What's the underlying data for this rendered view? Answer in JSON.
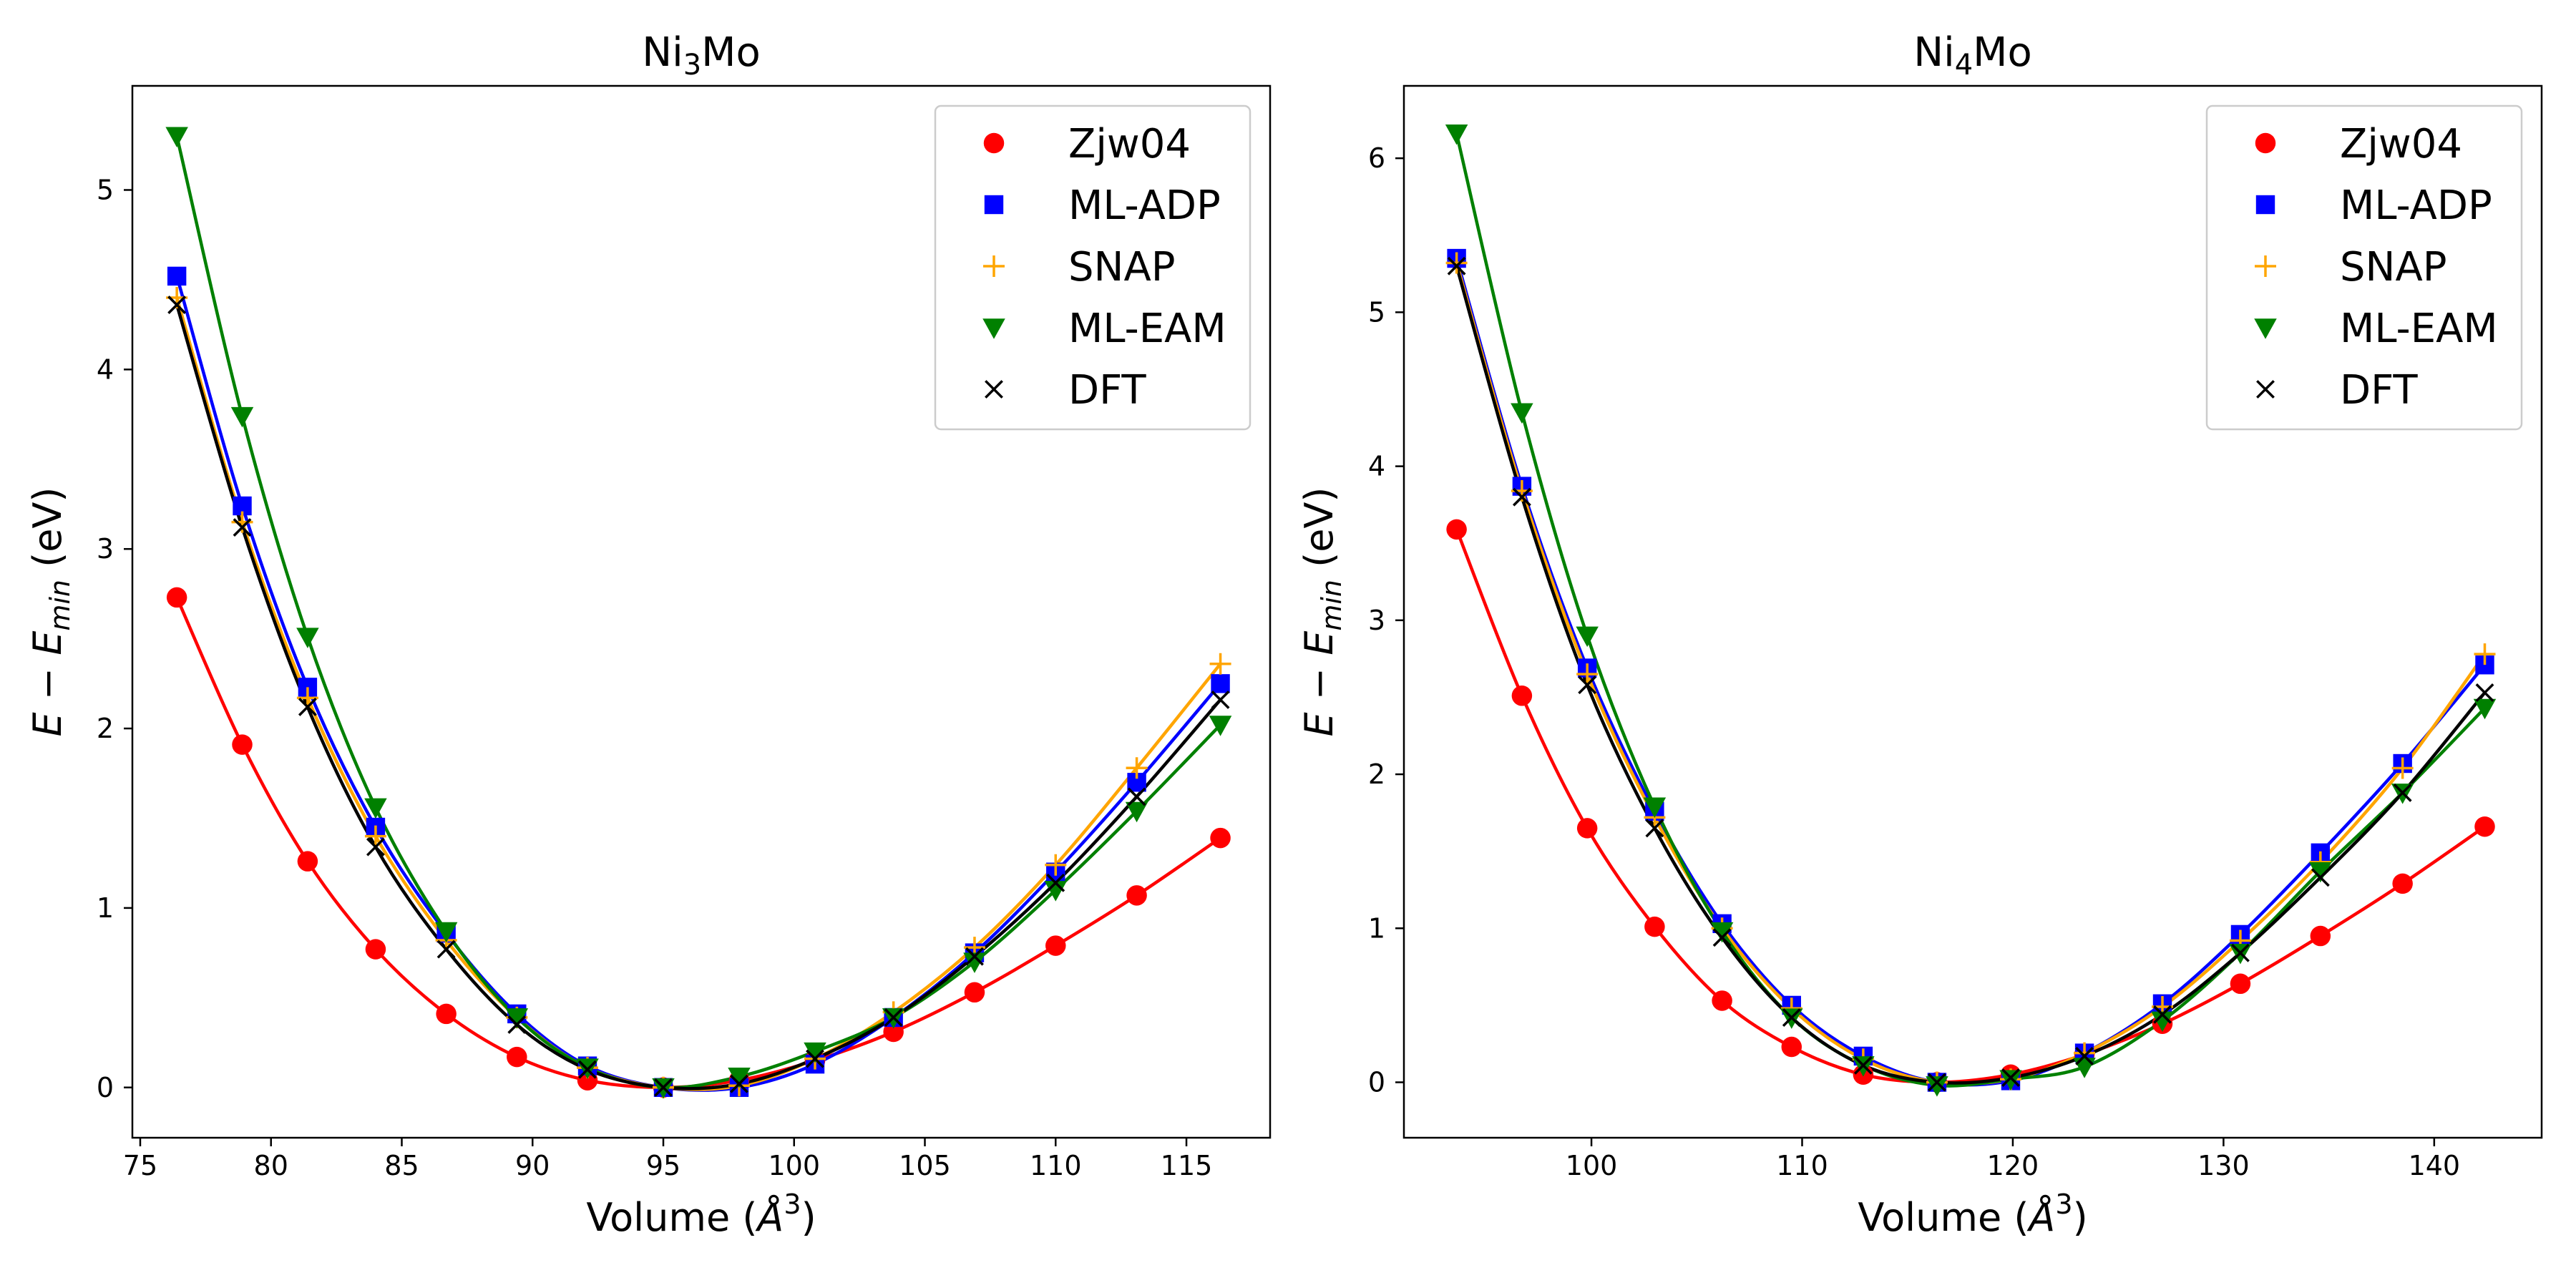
{
  "chart_data": [
    {
      "type": "scatter",
      "title": {
        "base": "Ni",
        "sub": "3",
        "rest": "Mo"
      },
      "xlabel": {
        "pre": "Volume (",
        "var": "Å",
        "sup": "3",
        "post": ")"
      },
      "ylabel": {
        "var_e": "E",
        "minus": " − ",
        "var_e2": "E",
        "sub": "min",
        "post": " (eV)"
      },
      "xlim": [
        74.7,
        118.2
      ],
      "ylim": [
        -0.28,
        5.58
      ],
      "xticks": [
        75,
        80,
        85,
        90,
        95,
        100,
        105,
        110,
        115
      ],
      "yticks": [
        0,
        1,
        2,
        3,
        4,
        5
      ],
      "legend_position": "top-right",
      "series": [
        {
          "name": "Zjw04",
          "color": "#ff0000",
          "marker": "circle",
          "x": [
            76.4,
            78.9,
            81.4,
            84.0,
            86.7,
            89.4,
            92.1,
            95.0,
            97.9,
            100.8,
            103.8,
            106.9,
            110.0,
            113.1,
            116.3
          ],
          "y": [
            2.73,
            1.91,
            1.26,
            0.77,
            0.41,
            0.17,
            0.04,
            0.0,
            0.04,
            0.15,
            0.31,
            0.53,
            0.79,
            1.07,
            1.39
          ]
        },
        {
          "name": "ML-ADP",
          "color": "#0000ff",
          "marker": "square",
          "x": [
            76.4,
            78.9,
            81.4,
            84.0,
            86.7,
            89.4,
            92.1,
            95.0,
            97.9,
            100.8,
            103.8,
            106.9,
            110.0,
            113.1,
            116.3
          ],
          "y": [
            4.52,
            3.24,
            2.23,
            1.45,
            0.86,
            0.41,
            0.12,
            0.0,
            0.0,
            0.13,
            0.39,
            0.75,
            1.2,
            1.7,
            2.25
          ]
        },
        {
          "name": "SNAP",
          "color": "#ffa500",
          "marker": "plus",
          "x": [
            76.4,
            78.9,
            81.4,
            84.0,
            86.7,
            89.4,
            92.1,
            95.0,
            97.9,
            100.8,
            103.8,
            106.9,
            110.0,
            113.1,
            116.3
          ],
          "y": [
            4.4,
            3.15,
            2.17,
            1.4,
            0.82,
            0.39,
            0.11,
            0.0,
            0.01,
            0.16,
            0.42,
            0.78,
            1.24,
            1.78,
            2.36
          ]
        },
        {
          "name": "ML-EAM",
          "color": "#008000",
          "marker": "triangle-down",
          "x": [
            76.4,
            78.9,
            81.4,
            84.0,
            86.7,
            89.4,
            92.1,
            95.0,
            97.9,
            100.8,
            103.8,
            106.9,
            110.0,
            113.1,
            116.3
          ],
          "y": [
            5.3,
            3.74,
            2.51,
            1.56,
            0.87,
            0.39,
            0.11,
            0.0,
            0.06,
            0.2,
            0.39,
            0.7,
            1.1,
            1.54,
            2.02
          ]
        },
        {
          "name": "DFT",
          "color": "#000000",
          "marker": "x",
          "x": [
            76.4,
            78.9,
            81.4,
            84.0,
            86.7,
            89.4,
            92.1,
            95.0,
            97.9,
            100.8,
            103.8,
            106.9,
            110.0,
            113.1,
            116.3
          ],
          "y": [
            4.36,
            3.12,
            2.12,
            1.34,
            0.77,
            0.35,
            0.1,
            0.0,
            0.02,
            0.16,
            0.39,
            0.73,
            1.14,
            1.62,
            2.16
          ]
        }
      ]
    },
    {
      "type": "scatter",
      "title": {
        "base": "Ni",
        "sub": "4",
        "rest": "Mo"
      },
      "xlabel": {
        "pre": "Volume (",
        "var": "Å",
        "sup": "3",
        "post": ")"
      },
      "ylabel": {
        "var_e": "E",
        "minus": " − ",
        "var_e2": "E",
        "sub": "min",
        "post": " (eV)"
      },
      "xlim": [
        91.1,
        145.1
      ],
      "ylim": [
        -0.36,
        6.47
      ],
      "xticks": [
        100,
        110,
        120,
        130,
        140
      ],
      "yticks": [
        0,
        1,
        2,
        3,
        4,
        5,
        6
      ],
      "legend_position": "top-right",
      "series": [
        {
          "name": "Zjw04",
          "color": "#ff0000",
          "marker": "circle",
          "x": [
            93.6,
            96.7,
            99.8,
            103.0,
            106.2,
            109.5,
            112.9,
            116.4,
            119.9,
            123.4,
            127.1,
            130.8,
            134.6,
            138.5,
            142.4
          ],
          "y": [
            3.59,
            2.51,
            1.65,
            1.01,
            0.53,
            0.23,
            0.05,
            0.0,
            0.05,
            0.18,
            0.38,
            0.64,
            0.95,
            1.29,
            1.66
          ]
        },
        {
          "name": "ML-ADP",
          "color": "#0000ff",
          "marker": "square",
          "x": [
            93.6,
            96.7,
            99.8,
            103.0,
            106.2,
            109.5,
            112.9,
            116.4,
            119.9,
            123.4,
            127.1,
            130.8,
            134.6,
            138.5,
            142.4
          ],
          "y": [
            5.35,
            3.87,
            2.69,
            1.76,
            1.03,
            0.5,
            0.17,
            0.0,
            0.01,
            0.19,
            0.51,
            0.96,
            1.49,
            2.07,
            2.71
          ]
        },
        {
          "name": "SNAP",
          "color": "#ffa500",
          "marker": "plus",
          "x": [
            93.6,
            96.7,
            99.8,
            103.0,
            106.2,
            109.5,
            112.9,
            116.4,
            119.9,
            123.4,
            127.1,
            130.8,
            134.6,
            138.5,
            142.4
          ],
          "y": [
            5.32,
            3.84,
            2.65,
            1.72,
            1.0,
            0.48,
            0.15,
            0.0,
            0.02,
            0.19,
            0.49,
            0.92,
            1.43,
            2.04,
            2.78
          ]
        },
        {
          "name": "ML-EAM",
          "color": "#008000",
          "marker": "triangle-down",
          "x": [
            93.6,
            96.7,
            99.8,
            103.0,
            106.2,
            109.5,
            112.9,
            116.4,
            119.9,
            123.4,
            127.1,
            130.8,
            134.6,
            138.5,
            142.4
          ],
          "y": [
            6.16,
            4.35,
            2.9,
            1.79,
            0.98,
            0.42,
            0.11,
            -0.02,
            0.02,
            0.1,
            0.4,
            0.84,
            1.37,
            1.88,
            2.43
          ]
        },
        {
          "name": "DFT",
          "color": "#000000",
          "marker": "x",
          "x": [
            93.6,
            96.7,
            99.8,
            103.0,
            106.2,
            109.5,
            112.9,
            116.4,
            119.9,
            123.4,
            127.1,
            130.8,
            134.6,
            138.5,
            142.4
          ],
          "y": [
            5.3,
            3.8,
            2.58,
            1.65,
            0.94,
            0.42,
            0.11,
            0.0,
            0.03,
            0.17,
            0.44,
            0.84,
            1.33,
            1.88,
            2.53
          ]
        }
      ]
    }
  ]
}
